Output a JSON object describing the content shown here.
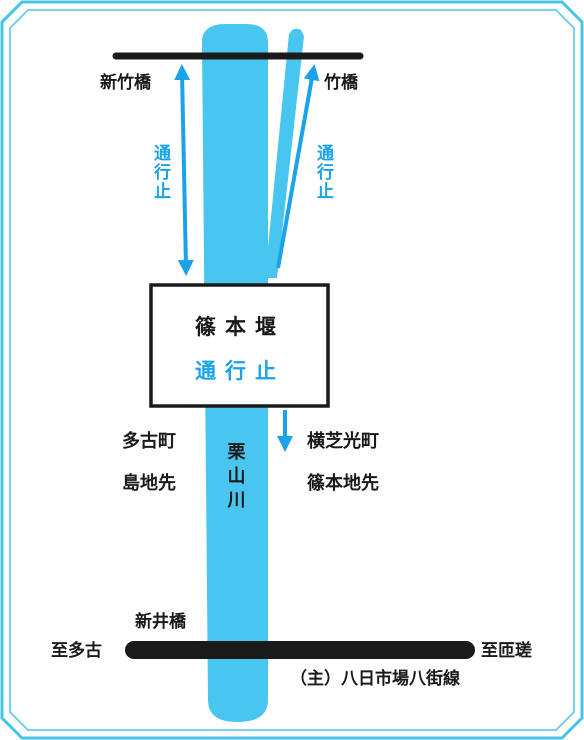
{
  "colors": {
    "frame": "#48c4ea",
    "river": "#48c6f0",
    "road": "#1a1a1a",
    "text": "#1a1a1a",
    "accent": "#1aa3e8"
  },
  "labels": {
    "shin_takebashi": "新竹橋",
    "takebashi": "竹橋",
    "closed_left": "通行止",
    "closed_right": "通行止",
    "weir_name": "篠本堰",
    "weir_status": "通行止",
    "tako_line1": "多古町",
    "tako_line2": "島地先",
    "river_name": "栗山川",
    "yoko_line1": "横芝光町",
    "yoko_line2": "篠本地先",
    "shinibashi": "新井橋",
    "to_tako": "至多古",
    "to_sosa": "至匝瑳",
    "main_road": "（主）八日市場八街線"
  }
}
